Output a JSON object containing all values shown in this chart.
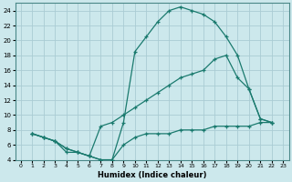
{
  "xlabel": "Humidex (Indice chaleur)",
  "bg_color": "#cce8ec",
  "grid_color": "#aaccd4",
  "line_color": "#1a7a6e",
  "xlim": [
    -0.5,
    23.5
  ],
  "ylim": [
    4,
    25
  ],
  "xticks": [
    0,
    1,
    2,
    3,
    4,
    5,
    6,
    7,
    8,
    9,
    10,
    11,
    12,
    13,
    14,
    15,
    16,
    17,
    18,
    19,
    20,
    21,
    22,
    23
  ],
  "yticks": [
    4,
    6,
    8,
    10,
    12,
    14,
    16,
    18,
    20,
    22,
    24
  ],
  "line1_x": [
    1,
    2,
    3,
    4,
    5,
    6,
    7,
    8,
    9,
    10,
    11,
    12,
    13,
    14,
    15,
    16,
    17,
    18,
    19,
    20,
    21,
    22
  ],
  "line1_y": [
    7.5,
    7.0,
    6.5,
    5.0,
    5.0,
    4.5,
    4.0,
    4.0,
    9.0,
    18.5,
    20.5,
    22.5,
    24.0,
    24.5,
    24.0,
    23.5,
    22.5,
    20.5,
    18.0,
    13.5,
    9.5,
    9.0
  ],
  "line2_x": [
    1,
    2,
    3,
    4,
    5,
    6,
    7,
    8,
    9,
    10,
    11,
    12,
    13,
    14,
    15,
    16,
    17,
    18,
    19,
    20,
    21,
    22
  ],
  "line2_y": [
    7.5,
    7.0,
    6.5,
    5.5,
    5.0,
    4.5,
    8.5,
    9.0,
    10.0,
    11.0,
    12.0,
    13.0,
    14.0,
    15.0,
    15.5,
    16.0,
    17.5,
    18.0,
    15.0,
    13.5,
    9.5,
    9.0
  ],
  "line3_x": [
    1,
    2,
    3,
    4,
    5,
    6,
    7,
    8,
    9,
    10,
    11,
    12,
    13,
    14,
    15,
    16,
    17,
    18,
    19,
    20,
    21,
    22
  ],
  "line3_y": [
    7.5,
    7.0,
    6.5,
    5.5,
    5.0,
    4.5,
    4.0,
    4.0,
    6.0,
    7.0,
    7.5,
    7.5,
    7.5,
    8.0,
    8.0,
    8.0,
    8.5,
    8.5,
    8.5,
    8.5,
    9.0,
    9.0
  ]
}
